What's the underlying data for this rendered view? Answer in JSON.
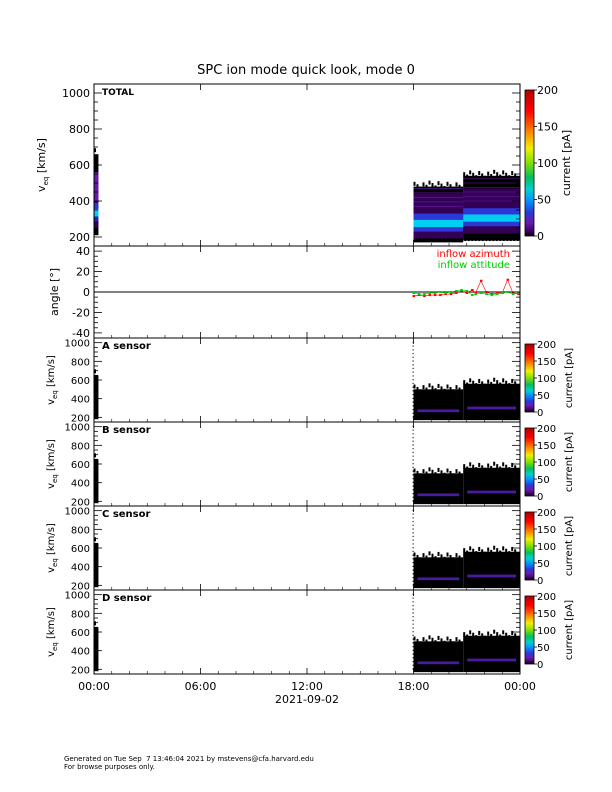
{
  "title": "SPC ion mode quick look, mode 0",
  "footer": {
    "line1": "Generated on Tue Sep  7 13:46:04 2021 by mstevens@cfa.harvard.edu",
    "line2": "For browse purposes only."
  },
  "colors": {
    "axis": "#000000",
    "inflow_azimuth": "#ff0000",
    "inflow_attitude": "#00cc00",
    "colorscale": [
      "#000000",
      "#3a0060",
      "#6a1aa8",
      "#2c39d8",
      "#0090ff",
      "#00d0d0",
      "#00c060",
      "#80e000",
      "#f0f000",
      "#ff8000",
      "#ff0000",
      "#b00000"
    ]
  },
  "chart_data": [
    {
      "id": "total",
      "type": "heatmap",
      "panel_label": "TOTAL",
      "ylabel_main": "v",
      "ylabel_sub": "eq",
      "ylabel_unit": "[km/s]",
      "ylim": [
        150,
        1050
      ],
      "yticks": [
        200,
        400,
        600,
        800,
        1000
      ],
      "colorbar": {
        "label": "current [pA]",
        "range": [
          0,
          200
        ],
        "ticks": [
          0,
          50,
          100,
          150,
          200
        ]
      },
      "coverage": [
        {
          "t0": 0.0,
          "t1": 0.25,
          "vmin": 210,
          "vmax": 660,
          "vpeak": 330
        },
        {
          "t0": 18.0,
          "t1": 20.8,
          "vmin": 170,
          "vmax": 480,
          "vpeak": 270
        },
        {
          "t0": 20.8,
          "t1": 24.0,
          "vmin": 180,
          "vmax": 540,
          "vpeak": 300
        }
      ]
    },
    {
      "id": "angle",
      "type": "scatter",
      "ylabel_text": "angle [°]",
      "ylim": [
        -45,
        45
      ],
      "yticks": [
        -40,
        -20,
        0,
        20,
        40
      ],
      "zero_line": true,
      "legend_placement": "top-right",
      "series": [
        {
          "name": "inflow azimuth",
          "color": "#ff0000",
          "x": [
            18.0,
            18.3,
            18.6,
            18.9,
            19.2,
            19.5,
            19.8,
            20.1,
            20.4,
            20.7,
            21.0,
            21.3,
            21.5,
            21.8,
            22.1,
            22.4,
            22.7,
            23.0,
            23.3,
            23.6,
            23.9
          ],
          "y": [
            -4,
            -3,
            -4,
            -3,
            -3,
            -3,
            -2,
            -2,
            -1,
            1,
            -1,
            2,
            -1,
            11,
            0,
            -2,
            -1,
            -1,
            12,
            -1,
            -2
          ]
        },
        {
          "name": "inflow attitude",
          "color": "#00cc00",
          "x": [
            18.0,
            18.3,
            18.6,
            18.9,
            19.2,
            19.5,
            19.8,
            20.1,
            20.4,
            20.7,
            21.0,
            21.3,
            21.5,
            21.8,
            22.1,
            22.4,
            22.7,
            23.0,
            23.3,
            23.6,
            23.9
          ],
          "y": [
            -1,
            -2,
            -2,
            -1,
            -1,
            0,
            -1,
            0,
            1,
            2,
            1,
            -3,
            -2,
            -1,
            -2,
            -3,
            -2,
            -1,
            0,
            -2,
            -1
          ]
        }
      ]
    },
    {
      "id": "A",
      "type": "heatmap",
      "panel_label": "A sensor",
      "ylabel_main": "v",
      "ylabel_sub": "eq",
      "ylabel_unit": "[km/s]",
      "ylim": [
        150,
        1050
      ],
      "yticks": [
        200,
        400,
        600,
        800,
        1000
      ],
      "colorbar": {
        "label": "current [pA]",
        "range": [
          0,
          200
        ],
        "ticks": [
          0,
          50,
          100,
          150,
          200
        ]
      },
      "coverage": [
        {
          "t0": 0.0,
          "t1": 0.25,
          "vmin": 180,
          "vmax": 650,
          "vpeak": 0
        },
        {
          "t0": 18.0,
          "t1": 20.8,
          "vmin": 170,
          "vmax": 500,
          "vpeak": 270
        },
        {
          "t0": 20.8,
          "t1": 24.0,
          "vmin": 170,
          "vmax": 560,
          "vpeak": 300
        }
      ]
    },
    {
      "id": "B",
      "type": "heatmap",
      "panel_label": "B sensor",
      "ylabel_main": "v",
      "ylabel_sub": "eq",
      "ylabel_unit": "[km/s]",
      "ylim": [
        150,
        1050
      ],
      "yticks": [
        200,
        400,
        600,
        800,
        1000
      ],
      "colorbar": {
        "label": "current [pA]",
        "range": [
          0,
          200
        ],
        "ticks": [
          0,
          50,
          100,
          150,
          200
        ]
      },
      "coverage": [
        {
          "t0": 0.0,
          "t1": 0.25,
          "vmin": 180,
          "vmax": 650,
          "vpeak": 0
        },
        {
          "t0": 18.0,
          "t1": 20.8,
          "vmin": 170,
          "vmax": 500,
          "vpeak": 270
        },
        {
          "t0": 20.8,
          "t1": 24.0,
          "vmin": 170,
          "vmax": 560,
          "vpeak": 300
        }
      ]
    },
    {
      "id": "C",
      "type": "heatmap",
      "panel_label": "C sensor",
      "ylabel_main": "v",
      "ylabel_sub": "eq",
      "ylabel_unit": "[km/s]",
      "ylim": [
        150,
        1050
      ],
      "yticks": [
        200,
        400,
        600,
        800,
        1000
      ],
      "colorbar": {
        "label": "current [pA]",
        "range": [
          0,
          200
        ],
        "ticks": [
          0,
          50,
          100,
          150,
          200
        ]
      },
      "coverage": [
        {
          "t0": 0.0,
          "t1": 0.25,
          "vmin": 180,
          "vmax": 650,
          "vpeak": 0
        },
        {
          "t0": 18.0,
          "t1": 20.8,
          "vmin": 170,
          "vmax": 500,
          "vpeak": 270
        },
        {
          "t0": 20.8,
          "t1": 24.0,
          "vmin": 170,
          "vmax": 560,
          "vpeak": 300
        }
      ]
    },
    {
      "id": "D",
      "type": "heatmap",
      "panel_label": "D sensor",
      "ylabel_main": "v",
      "ylabel_sub": "eq",
      "ylabel_unit": "[km/s]",
      "ylim": [
        150,
        1050
      ],
      "yticks": [
        200,
        400,
        600,
        800,
        1000
      ],
      "colorbar": {
        "label": "current [pA]",
        "range": [
          0,
          200
        ],
        "ticks": [
          0,
          50,
          100,
          150,
          200
        ]
      },
      "coverage": [
        {
          "t0": 0.0,
          "t1": 0.25,
          "vmin": 180,
          "vmax": 650,
          "vpeak": 0
        },
        {
          "t0": 18.0,
          "t1": 20.8,
          "vmin": 170,
          "vmax": 500,
          "vpeak": 270
        },
        {
          "t0": 20.8,
          "t1": 24.0,
          "vmin": 170,
          "vmax": 560,
          "vpeak": 300
        }
      ]
    }
  ],
  "xaxis": {
    "range_hours": [
      0,
      24
    ],
    "ticks": [
      0,
      6,
      12,
      18,
      24
    ],
    "tick_labels": [
      "00:00",
      "06:00",
      "12:00",
      "18:00",
      "00:00"
    ],
    "date_label": "2021-09-02"
  }
}
